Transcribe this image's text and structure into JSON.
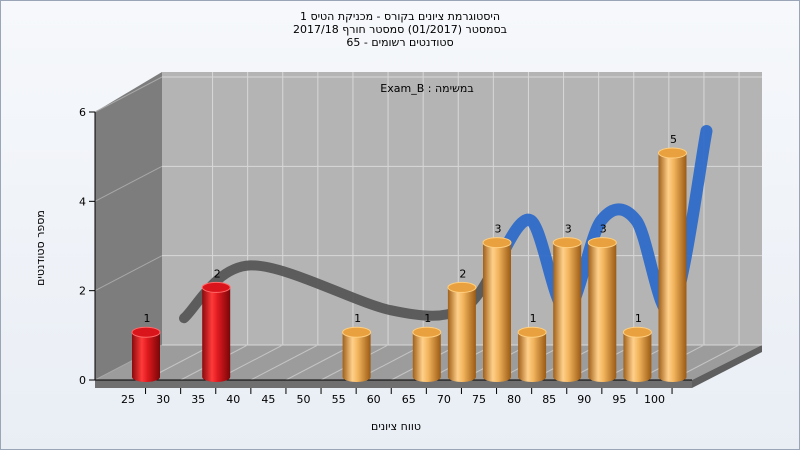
{
  "header": {
    "title_lines": [
      "היסטוגרמת ציונים בקורס - מכניקת הטיס 1",
      "בסמסטר  (01/2017)  סמסטר חורף 2017/18",
      "סטודנטים רשומים - 65"
    ]
  },
  "chart_data": {
    "type": "bar",
    "annotation": "Exam_B : במשימה",
    "xlabel": "טווח ציונים",
    "ylabel": "מספר סטודנטים",
    "ylim": [
      0,
      6
    ],
    "y_ticks": [
      "0",
      "2",
      "4",
      "6"
    ],
    "x_tick_labels": [
      "25",
      "30",
      "35",
      "40",
      "45",
      "50",
      "55",
      "60",
      "65",
      "70",
      "75",
      "80",
      "85",
      "90",
      "95",
      "100"
    ],
    "grid": true,
    "bars": [
      {
        "x": "25",
        "value": 1,
        "color": "#d9141a"
      },
      {
        "x": "35",
        "value": 2,
        "color": "#d9141a"
      },
      {
        "x": "55",
        "value": 1,
        "color": "#e8a13e"
      },
      {
        "x": "65",
        "value": 1,
        "color": "#e8a13e"
      },
      {
        "x": "70",
        "value": 2,
        "color": "#e8a13e"
      },
      {
        "x": "75",
        "value": 3,
        "color": "#e8a13e"
      },
      {
        "x": "80",
        "value": 1,
        "color": "#e8a13e"
      },
      {
        "x": "85",
        "value": 3,
        "color": "#e8a13e"
      },
      {
        "x": "90",
        "value": 3,
        "color": "#e8a13e"
      },
      {
        "x": "95",
        "value": 1,
        "color": "#e8a13e"
      },
      {
        "x": "100",
        "value": 5,
        "color": "#e8a13e"
      }
    ],
    "trend_ribbon": {
      "colors": {
        "failing": "#555555",
        "passing": "#2f6cc9"
      }
    }
  }
}
